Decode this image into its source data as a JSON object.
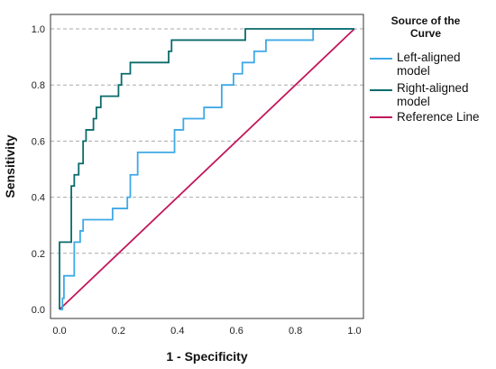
{
  "chart_data": {
    "type": "line",
    "xlabel": "1 - Specificity",
    "ylabel": "Sensitivity",
    "xlim": [
      0,
      1
    ],
    "ylim": [
      0,
      1
    ],
    "x_ticks": [
      "0.0",
      "0.2",
      "0.4",
      "0.6",
      "0.8",
      "1.0"
    ],
    "y_ticks": [
      "0.0",
      "0.2",
      "0.4",
      "0.6",
      "0.8",
      "1.0"
    ],
    "grid": "horizontal dashed",
    "legend": {
      "title_lines": [
        "Source of the",
        "Curve"
      ],
      "placement": "right",
      "entries": [
        {
          "label_lines": [
            "Left-aligned",
            "model"
          ],
          "color": "#3fa9e6"
        },
        {
          "label_lines": [
            "Right-aligned",
            "model"
          ],
          "color": "#0b6b6b"
        },
        {
          "label_lines": [
            "Reference Line"
          ],
          "color": "#c2185b"
        }
      ]
    },
    "series": [
      {
        "name": "Left-aligned model",
        "color": "#3fa9e6",
        "points": [
          [
            0,
            0
          ],
          [
            0.01,
            0
          ],
          [
            0.01,
            0.04
          ],
          [
            0.015,
            0.04
          ],
          [
            0.015,
            0.12
          ],
          [
            0.05,
            0.12
          ],
          [
            0.05,
            0.24
          ],
          [
            0.07,
            0.24
          ],
          [
            0.07,
            0.28
          ],
          [
            0.08,
            0.28
          ],
          [
            0.08,
            0.32
          ],
          [
            0.18,
            0.32
          ],
          [
            0.18,
            0.36
          ],
          [
            0.23,
            0.36
          ],
          [
            0.23,
            0.4
          ],
          [
            0.24,
            0.4
          ],
          [
            0.24,
            0.48
          ],
          [
            0.265,
            0.48
          ],
          [
            0.265,
            0.56
          ],
          [
            0.39,
            0.56
          ],
          [
            0.39,
            0.64
          ],
          [
            0.42,
            0.64
          ],
          [
            0.42,
            0.68
          ],
          [
            0.49,
            0.68
          ],
          [
            0.49,
            0.72
          ],
          [
            0.55,
            0.72
          ],
          [
            0.55,
            0.8
          ],
          [
            0.59,
            0.8
          ],
          [
            0.59,
            0.84
          ],
          [
            0.62,
            0.84
          ],
          [
            0.62,
            0.88
          ],
          [
            0.66,
            0.88
          ],
          [
            0.66,
            0.92
          ],
          [
            0.7,
            0.92
          ],
          [
            0.7,
            0.96
          ],
          [
            0.86,
            0.96
          ],
          [
            0.86,
            1.0
          ],
          [
            1.0,
            1.0
          ]
        ]
      },
      {
        "name": "Right-aligned model",
        "color": "#0b6b6b",
        "points": [
          [
            0,
            0
          ],
          [
            0,
            0.24
          ],
          [
            0.04,
            0.24
          ],
          [
            0.04,
            0.44
          ],
          [
            0.05,
            0.44
          ],
          [
            0.05,
            0.48
          ],
          [
            0.065,
            0.48
          ],
          [
            0.065,
            0.52
          ],
          [
            0.08,
            0.52
          ],
          [
            0.08,
            0.6
          ],
          [
            0.09,
            0.6
          ],
          [
            0.09,
            0.64
          ],
          [
            0.115,
            0.64
          ],
          [
            0.115,
            0.68
          ],
          [
            0.125,
            0.68
          ],
          [
            0.125,
            0.72
          ],
          [
            0.14,
            0.72
          ],
          [
            0.14,
            0.76
          ],
          [
            0.2,
            0.76
          ],
          [
            0.2,
            0.8
          ],
          [
            0.21,
            0.8
          ],
          [
            0.21,
            0.84
          ],
          [
            0.24,
            0.84
          ],
          [
            0.24,
            0.88
          ],
          [
            0.37,
            0.88
          ],
          [
            0.37,
            0.92
          ],
          [
            0.38,
            0.92
          ],
          [
            0.38,
            0.96
          ],
          [
            0.63,
            0.96
          ],
          [
            0.63,
            1.0
          ],
          [
            1.0,
            1.0
          ]
        ]
      },
      {
        "name": "Reference Line",
        "color": "#c2185b",
        "points": [
          [
            0,
            0
          ],
          [
            1,
            1
          ]
        ]
      }
    ]
  }
}
